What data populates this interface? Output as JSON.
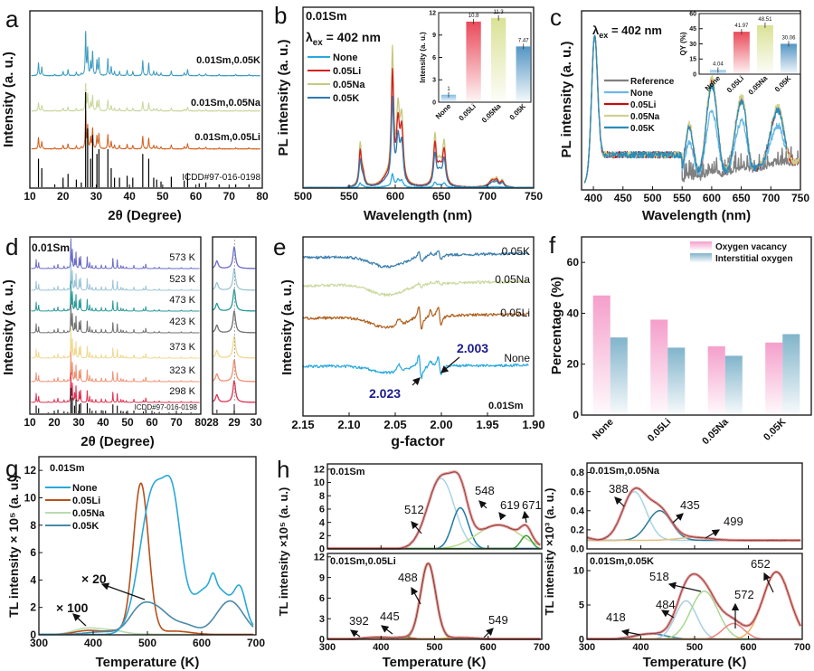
{
  "chart_data": [
    {
      "panel": "a",
      "type": "line",
      "xlabel": "2θ (Degree)",
      "ylabel": "Intensity (a. u.)",
      "xlim": [
        10,
        80
      ],
      "xticks": [
        "10",
        "20",
        "30",
        "40",
        "50",
        "60",
        "70",
        "80"
      ],
      "series": [
        {
          "name": "0.01Sm,0.05K",
          "color": "#3a9abf"
        },
        {
          "name": "0.01Sm,0.05Na",
          "color": "#c9d69a"
        },
        {
          "name": "0.01Sm,0.05Li",
          "color": "#d45f1c"
        },
        {
          "name": "ICDD#97-016-0198",
          "color": "#000000"
        }
      ],
      "peaks_2theta_relative_intensity": [
        [
          12.6,
          0.3
        ],
        [
          13.6,
          0.2
        ],
        [
          17.5,
          0.03
        ],
        [
          20,
          0.1
        ],
        [
          21.5,
          0.14
        ],
        [
          24,
          0.08
        ],
        [
          25.5,
          0.05
        ],
        [
          26.8,
          1.0
        ],
        [
          27.4,
          0.62
        ],
        [
          28.3,
          0.3
        ],
        [
          28.9,
          0.55
        ],
        [
          30.2,
          0.35
        ],
        [
          30.8,
          0.4
        ],
        [
          33.5,
          0.4
        ],
        [
          34.5,
          0.2
        ],
        [
          35.5,
          0.1
        ],
        [
          37,
          0.1
        ],
        [
          39.3,
          0.12
        ],
        [
          41,
          0.1
        ],
        [
          44,
          0.35
        ],
        [
          45.8,
          0.3
        ],
        [
          47.3,
          0.1
        ],
        [
          48.2,
          0.08
        ],
        [
          49.5,
          0.06
        ],
        [
          52.6,
          0.11
        ],
        [
          56.5,
          0.07
        ],
        [
          57.5,
          0.15
        ],
        [
          61,
          0.04
        ],
        [
          63,
          0.05
        ],
        [
          67,
          0.03
        ],
        [
          72,
          0.03
        ],
        [
          76,
          0.03
        ]
      ]
    },
    {
      "panel": "b",
      "type": "line",
      "title": "0.01Sm",
      "lambda_symbol": "λ",
      "lambda_sub": "ex",
      "lambda_value": " = 402 nm",
      "xlabel": "Wavelength (nm)",
      "ylabel": "PL intensity (a. u.)",
      "xlim": [
        500,
        750
      ],
      "xticks": [
        "500",
        "550",
        "600",
        "650",
        "700",
        "750"
      ],
      "series": [
        {
          "name": "None",
          "color": "#29a8e0",
          "relative_scale": 0.1
        },
        {
          "name": "0.05Li",
          "color": "#d42020",
          "relative_scale": 0.84
        },
        {
          "name": "0.05Na",
          "color": "#c8c880",
          "relative_scale": 1.0
        },
        {
          "name": "0.05K",
          "color": "#2e78b0",
          "relative_scale": 0.64
        }
      ],
      "peaks_nm": [
        [
          562,
          0.3,
          1.5
        ],
        [
          565,
          0.1,
          2
        ],
        [
          590,
          0.06,
          6
        ],
        [
          597,
          0.95,
          1.5
        ],
        [
          603,
          0.5,
          2
        ],
        [
          607,
          0.45,
          2
        ],
        [
          643,
          0.35,
          1.8
        ],
        [
          648,
          0.15,
          3
        ],
        [
          653,
          0.3,
          2
        ],
        [
          705,
          0.06,
          4
        ],
        [
          710,
          0.05,
          2
        ],
        [
          716,
          0.05,
          2
        ]
      ],
      "inset": {
        "type": "bar",
        "ylabel": "Intensity (a. u.)",
        "ylim": [
          0,
          12
        ],
        "yticks": [
          "0",
          "3",
          "6",
          "9",
          "12"
        ],
        "categories": [
          "None",
          "0.05Li",
          "0.05Na",
          "0.05K"
        ],
        "values": [
          1,
          10.8,
          11.3,
          7.47
        ],
        "value_labels": [
          "1",
          "10.8",
          "11.3",
          "7.47"
        ],
        "colors": [
          "#7ab8e0",
          "#e84050",
          "#d8e090",
          "#4a90c0"
        ]
      }
    },
    {
      "panel": "c",
      "type": "line",
      "lambda_symbol": "λ",
      "lambda_sub": "ex",
      "lambda_value": " = 402 nm",
      "xlabel": "Wavelength (nm)",
      "ylabel": "PL intensity (a. u.)",
      "xlim": [
        380,
        750
      ],
      "xticks": [
        "400",
        "450",
        "500",
        "550",
        "600",
        "650",
        "700",
        "750"
      ],
      "series": [
        {
          "name": "Reference",
          "color": "#808080",
          "emission_scale": 0.03
        },
        {
          "name": "None",
          "color": "#6ab8e8",
          "emission_scale": 0.38
        },
        {
          "name": "0.05Li",
          "color": "#c01010",
          "emission_scale": 0.55
        },
        {
          "name": "0.05Na",
          "color": "#d0d090",
          "emission_scale": 0.57
        },
        {
          "name": "0.05K",
          "color": "#2a8cb8",
          "emission_scale": 0.53
        }
      ],
      "excitation_peak_nm": 402,
      "inset": {
        "type": "bar",
        "ylabel": "QY (%)",
        "ylim": [
          0,
          60
        ],
        "yticks": [
          "0",
          "15",
          "30",
          "45",
          "60"
        ],
        "categories": [
          "None",
          "0.05Li",
          "0.05Na",
          "0.05K"
        ],
        "values": [
          4.04,
          41.97,
          48.51,
          30.06
        ],
        "value_labels": [
          "4.04",
          "41.97",
          "48.51",
          "30.06"
        ],
        "colors": [
          "#7ab8e0",
          "#e84050",
          "#d8e090",
          "#4a90c0"
        ]
      }
    },
    {
      "panel": "d",
      "type": "line",
      "title": "0.01Sm",
      "xlabel": "2θ (Degree)",
      "ylabel": "Intensity (a. u.)",
      "xlim": [
        10,
        80
      ],
      "xticks": [
        "10",
        "20",
        "30",
        "40",
        "50",
        "60",
        "70",
        "80"
      ],
      "inset_xlim": [
        28,
        30
      ],
      "inset_xticks": [
        "28",
        "29",
        "30"
      ],
      "inset_peaks": [
        [
          28.2,
          0.35
        ],
        [
          29.0,
          1.0
        ]
      ],
      "series": [
        {
          "name": "573 K",
          "color": "#6a6ac8"
        },
        {
          "name": "523 K",
          "color": "#9cc4d8"
        },
        {
          "name": "473 K",
          "color": "#2a9a9a"
        },
        {
          "name": "423 K",
          "color": "#707070"
        },
        {
          "name": "373 K",
          "color": "#f0d890"
        },
        {
          "name": "323 K",
          "color": "#f09070"
        },
        {
          "name": "298 K",
          "color": "#e03050"
        }
      ],
      "reference": "ICDD#97-016-0198"
    },
    {
      "panel": "e",
      "type": "line",
      "xlabel": "g-factor",
      "ylabel": "Intensity (a. u.)",
      "xlim": [
        2.15,
        1.9
      ],
      "xticks": [
        "2.15",
        "2.10",
        "2.05",
        "2.00",
        "1.95",
        "1.90"
      ],
      "series": [
        {
          "name": "0.05K",
          "color": "#3a7eb0",
          "signal": 0.45
        },
        {
          "name": "0.05Na",
          "color": "#ccd8a0",
          "signal": 0.18
        },
        {
          "name": "0.05Li",
          "color": "#b0601e",
          "signal": 1.0
        },
        {
          "name": "None",
          "color": "#28a8e0",
          "signal": 1.0
        }
      ],
      "annotations": [
        "2.023",
        "2.003"
      ],
      "annotation_color": "#1a1a8c",
      "sample": "0.01Sm"
    },
    {
      "panel": "f",
      "type": "bar",
      "ylabel": "Percentage (%)",
      "ylim": [
        0,
        70
      ],
      "yticks": [
        "0",
        "20",
        "40",
        "60"
      ],
      "categories": [
        "None",
        "0.05Li",
        "0.05Na",
        "0.05K"
      ],
      "series": [
        {
          "name": "Oxygen vacancy",
          "color": "#f49ac8",
          "values": [
            47,
            37.5,
            27,
            28.5
          ]
        },
        {
          "name": "Interstitial oxygen",
          "color": "#7ab0c8",
          "values": [
            30.5,
            26.5,
            23.3,
            31.8
          ]
        }
      ],
      "legend": "top-right"
    },
    {
      "panel": "g",
      "type": "line",
      "title": "0.01Sm",
      "xlabel": "Temperature (K)",
      "ylabel": "TL intensity × 10⁵ (a. u.)",
      "xlim": [
        300,
        700
      ],
      "ylim": [
        0,
        13
      ],
      "xticks": [
        "300",
        "400",
        "500",
        "600",
        "700"
      ],
      "yticks": [
        "0",
        "2",
        "4",
        "6",
        "8",
        "10",
        "12"
      ],
      "series": [
        {
          "name": "None",
          "color": "#2aa8d8",
          "components": [
            [
              512,
              10.6,
              25
            ],
            [
              548,
              6.2,
              15
            ],
            [
              619,
              3.6,
              40
            ],
            [
              621,
              0.9,
              5
            ],
            [
              671,
              2.0,
              10
            ]
          ]
        },
        {
          "name": "0.05Li",
          "color": "#b8501a",
          "components": [
            [
              392,
              0.3,
              25
            ],
            [
              445,
              0.25,
              18
            ],
            [
              488,
              11.0,
              14
            ],
            [
              549,
              0.25,
              30
            ]
          ]
        },
        {
          "name": "0.05Na",
          "color": "#b8dcb0",
          "components": [
            [
              388,
              0.45,
              24
            ],
            [
              435,
              0.28,
              22
            ],
            [
              499,
              0.03,
              30
            ]
          ]
        },
        {
          "name": "0.05K",
          "color": "#4a8aa8",
          "components": [
            [
              418,
              0.2,
              30
            ],
            [
              484,
              1.4,
              20
            ],
            [
              518,
              1.75,
              25
            ],
            [
              572,
              0.6,
              20
            ],
            [
              652,
              2.45,
              25
            ]
          ]
        }
      ],
      "multiplier_labels": [
        "× 20",
        "× 100"
      ]
    },
    {
      "panel": "h",
      "type": "line",
      "xlabel": "Temperature (K)",
      "ylabel_left": "TL intensity ×10⁵ (a. u.)",
      "ylabel_right": "TL intensity ×10³ (a. u.)",
      "xlim": [
        300,
        700
      ],
      "xticks": [
        "300",
        "400",
        "500",
        "600",
        "700"
      ],
      "fit_color": "#f08080",
      "subplots": [
        {
          "title": "0.01Sm",
          "ylim": [
            0,
            12.8
          ],
          "yticks": [
            "0",
            "2",
            "4",
            "6",
            "8",
            "10",
            "12"
          ],
          "baseline": 0,
          "components": [
            [
              512,
              10.6,
              25
            ],
            [
              548,
              6.2,
              15
            ],
            [
              619,
              3.6,
              40
            ],
            [
              671,
              2.0,
              10
            ]
          ],
          "colors": [
            "#a8d4e6",
            "#1f78a8",
            "#b8dc8c",
            "#3a9a3a"
          ],
          "peak_labels": [
            "512",
            "548",
            "619",
            "671"
          ]
        },
        {
          "title": "0.01Sm,0.05Li",
          "ylim": [
            0,
            12.5
          ],
          "yticks": [
            "0",
            "3",
            "6",
            "9",
            "12"
          ],
          "baseline": 0,
          "components": [
            [
              392,
              0.3,
              25
            ],
            [
              445,
              0.25,
              18
            ],
            [
              488,
              11.0,
              14
            ],
            [
              549,
              0.25,
              30
            ]
          ],
          "colors": [
            "#e05050",
            "#d03030",
            "#30a030",
            "#e0a030"
          ],
          "peak_labels": [
            "392",
            "445",
            "488",
            "549"
          ]
        },
        {
          "title": "0.01Sm,0.05Na",
          "ylim": [
            0,
            0.9
          ],
          "yticks": [
            "0.0",
            "0.2",
            "0.4",
            "0.6",
            "0.8"
          ],
          "baseline": 0.09,
          "components": [
            [
              388,
              0.51,
              22
            ],
            [
              435,
              0.31,
              22
            ],
            [
              499,
              0.03,
              30
            ]
          ],
          "colors": [
            "#a8d4e6",
            "#2a7a98",
            "#e0c080"
          ],
          "peak_labels": [
            "388",
            "435",
            "499"
          ]
        },
        {
          "title": "0.01Sm,0.05K",
          "ylim": [
            0,
            12.5
          ],
          "yticks": [
            "0",
            "5",
            "10"
          ],
          "baseline": 0,
          "components": [
            [
              418,
              0.8,
              30
            ],
            [
              484,
              5.6,
              20
            ],
            [
              518,
              7.0,
              25
            ],
            [
              572,
              2.3,
              20
            ],
            [
              652,
              9.8,
              25
            ]
          ],
          "colors": [
            "#2a80b0",
            "#a8d0e0",
            "#a8d890",
            "#f08080",
            "#f0b060"
          ],
          "peak_labels": [
            "418",
            "484",
            "518",
            "572",
            "652"
          ]
        }
      ]
    }
  ],
  "panel_letters": [
    "a",
    "b",
    "c",
    "d",
    "e",
    "f",
    "g",
    "h"
  ]
}
